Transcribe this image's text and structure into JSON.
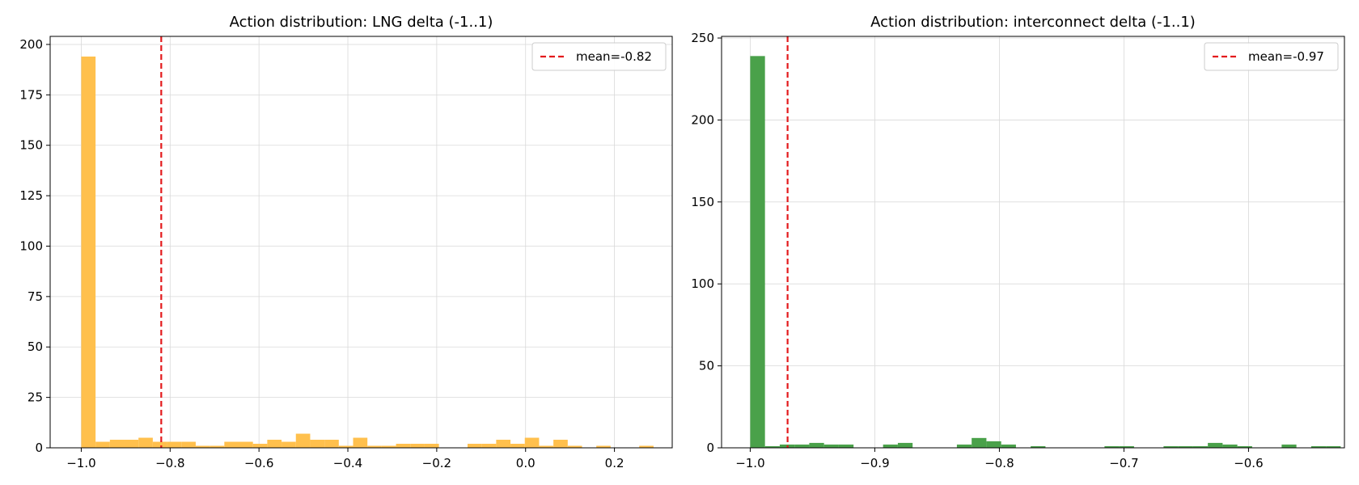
{
  "chart_data": [
    {
      "type": "bar",
      "title": "Action distribution: LNG delta (-1..1)",
      "xlabel": "",
      "ylabel": "",
      "xlim": [
        -1.07,
        0.33
      ],
      "ylim": [
        0,
        204
      ],
      "xticks": [
        -1.0,
        -0.8,
        -0.6,
        -0.4,
        -0.2,
        0.0,
        0.2
      ],
      "xtick_labels": [
        "−1.0",
        "−0.8",
        "−0.6",
        "−0.4",
        "−0.2",
        "0.0",
        "0.2"
      ],
      "yticks": [
        0,
        25,
        50,
        75,
        100,
        125,
        150,
        175,
        200
      ],
      "ytick_labels": [
        "0",
        "25",
        "50",
        "75",
        "100",
        "125",
        "150",
        "175",
        "200"
      ],
      "grid": true,
      "color": "#ffc04d",
      "bin_start": -1.0,
      "bin_width": 0.0322,
      "counts": [
        194,
        3,
        4,
        4,
        5,
        3,
        3,
        3,
        1,
        1,
        3,
        3,
        2,
        4,
        3,
        7,
        4,
        4,
        1,
        5,
        1,
        1,
        2,
        2,
        2,
        0,
        0,
        2,
        2,
        4,
        2,
        5,
        1,
        4,
        1,
        0,
        1,
        0,
        0,
        1
      ],
      "mean_line": {
        "x": -0.82,
        "label": "mean=-0.82",
        "color": "#e31a1c",
        "style": "dashed"
      },
      "legend": "top-right"
    },
    {
      "type": "bar",
      "title": "Action distribution: interconnect delta (-1..1)",
      "xlabel": "",
      "ylabel": "",
      "xlim": [
        -1.023,
        -0.523
      ],
      "ylim": [
        0,
        251
      ],
      "xticks": [
        -1.0,
        -0.9,
        -0.8,
        -0.7,
        -0.6
      ],
      "xtick_labels": [
        "−1.0",
        "−0.9",
        "−0.8",
        "−0.7",
        "−0.6"
      ],
      "yticks": [
        0,
        50,
        100,
        150,
        200,
        250
      ],
      "ytick_labels": [
        "0",
        "50",
        "100",
        "150",
        "200",
        "250"
      ],
      "grid": true,
      "color": "#4aa14a",
      "bin_start": -1.0,
      "bin_width": 0.01185,
      "counts": [
        239,
        1,
        2,
        2,
        3,
        2,
        2,
        0,
        0,
        2,
        3,
        0,
        0,
        0,
        2,
        6,
        4,
        2,
        0,
        1,
        0,
        0,
        0,
        0,
        1,
        1,
        0,
        0,
        1,
        1,
        1,
        3,
        2,
        1,
        0,
        0,
        2,
        0,
        1,
        1,
        0,
        0,
        0,
        2
      ],
      "mean_line": {
        "x": -0.97,
        "label": "mean=-0.97",
        "color": "#e31a1c",
        "style": "dashed"
      },
      "legend": "top-right"
    }
  ]
}
